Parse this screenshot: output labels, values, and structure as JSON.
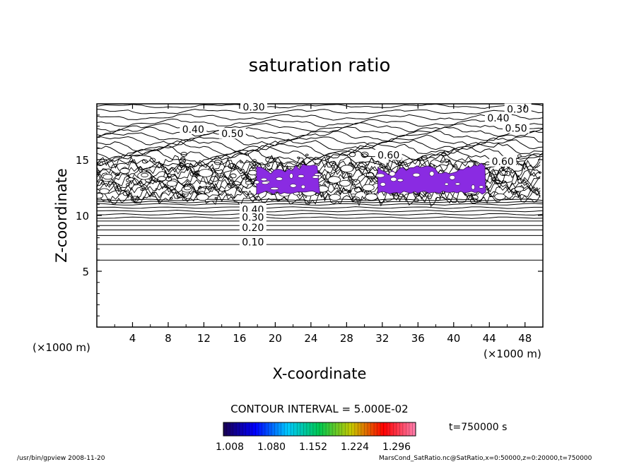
{
  "chart_data": {
    "type": "contour",
    "title": "saturation ratio",
    "xlabel": "X-coordinate",
    "ylabel": "Z-coordinate",
    "x_unit_left": "(×1000 m)",
    "x_unit_right": "(×1000 m)",
    "xlim": [
      0,
      50
    ],
    "ylim": [
      0,
      20
    ],
    "xticks": [
      4,
      8,
      12,
      16,
      20,
      24,
      28,
      32,
      36,
      40,
      44,
      48
    ],
    "yticks": [
      5,
      10,
      15
    ],
    "contour_interval_text": "CONTOUR INTERVAL = 5.000E-02",
    "contour_labels": [
      {
        "text": "0.30",
        "x": 17.6,
        "z": 19.6
      },
      {
        "text": "0.30",
        "x": 47.2,
        "z": 19.4
      },
      {
        "text": "0.40",
        "x": 10.8,
        "z": 17.6
      },
      {
        "text": "0.40",
        "x": 45.0,
        "z": 18.6
      },
      {
        "text": "0.50",
        "x": 15.2,
        "z": 17.2
      },
      {
        "text": "0.50",
        "x": 47.0,
        "z": 17.7
      },
      {
        "text": "0.60",
        "x": 32.7,
        "z": 15.3
      },
      {
        "text": "0.60",
        "x": 45.5,
        "z": 14.7
      },
      {
        "text": "0.40",
        "x": 17.5,
        "z": 10.4
      },
      {
        "text": "0.30",
        "x": 17.5,
        "z": 9.7
      },
      {
        "text": "0.20",
        "x": 17.5,
        "z": 8.8
      },
      {
        "text": "0.10",
        "x": 17.5,
        "z": 7.5
      }
    ],
    "contour_levels_z": [
      6.0,
      7.4,
      8.2,
      8.7,
      9.1,
      9.5,
      9.8,
      10.1,
      10.4,
      10.7,
      11.0,
      11.2,
      11.4
    ],
    "supersaturated_regions_x": [
      [
        17.9,
        25.0
      ],
      [
        31.5,
        43.6
      ]
    ],
    "supersaturated_band_z": [
      11.9,
      14.4
    ],
    "colorbar": {
      "ticks": [
        "1.008",
        "1.080",
        "1.152",
        "1.224",
        "1.296"
      ],
      "colors": [
        "#1a0050",
        "#0000ff",
        "#00c8ff",
        "#00c850",
        "#c8c800",
        "#ff0000",
        "#ff80b0"
      ]
    },
    "time_label": "t=750000 s"
  },
  "footer": {
    "left": "/usr/bin/gpview   2008-11-20",
    "right": "MarsCond_SatRatio.nc@SatRatio,x=0:50000,z=0:20000,t=750000"
  }
}
